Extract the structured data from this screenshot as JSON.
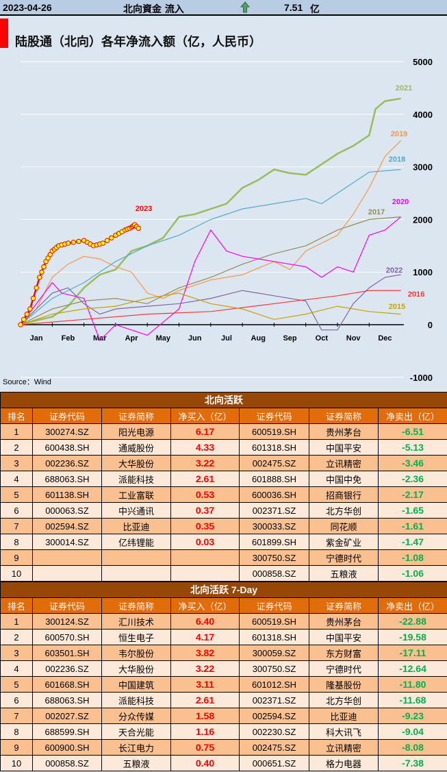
{
  "header": {
    "date": "2023-04-26",
    "label": "北向資金 流入",
    "direction_icon": "up-arrow-icon",
    "value": "7.51",
    "unit": "亿"
  },
  "chart_title": "陆股通（北向）各年净流入额（亿，人民币）",
  "source": "Source：Wind",
  "chart_data": {
    "type": "line",
    "title": "陆股通（北向）各年净流入额（亿，人民币）",
    "xlabel": "",
    "ylabel": "",
    "x_ticks": [
      "Jan",
      "Feb",
      "Mar",
      "Apr",
      "May",
      "Jun",
      "Jul",
      "Aug",
      "Sep",
      "Oct",
      "Nov",
      "Dec"
    ],
    "y_ticks": [
      5000,
      4000,
      3000,
      2000,
      1000,
      0,
      -1000
    ],
    "ylim": [
      -1000,
      5000
    ],
    "xlim_months": [
      0,
      12
    ],
    "grid": "horizontal",
    "series": [
      {
        "name": "2021",
        "color": "#9bbb59",
        "points": [
          [
            0,
            0
          ],
          [
            0.5,
            80
          ],
          [
            1,
            150
          ],
          [
            1.5,
            350
          ],
          [
            2,
            700
          ],
          [
            2.5,
            950
          ],
          [
            3,
            1050
          ],
          [
            3.5,
            1400
          ],
          [
            4,
            1500
          ],
          [
            4.5,
            1650
          ],
          [
            5,
            2050
          ],
          [
            5.5,
            2100
          ],
          [
            6,
            2200
          ],
          [
            6.5,
            2300
          ],
          [
            7,
            2600
          ],
          [
            7.5,
            2750
          ],
          [
            8,
            2950
          ],
          [
            8.5,
            2880
          ],
          [
            9,
            2850
          ],
          [
            9.5,
            3050
          ],
          [
            10,
            3250
          ],
          [
            10.5,
            3400
          ],
          [
            11,
            3600
          ],
          [
            11.2,
            4100
          ],
          [
            11.5,
            4250
          ],
          [
            12,
            4300
          ]
        ]
      },
      {
        "name": "2019",
        "color": "#f79646",
        "points": [
          [
            0,
            0
          ],
          [
            0.5,
            300
          ],
          [
            1,
            900
          ],
          [
            1.5,
            1150
          ],
          [
            2,
            1300
          ],
          [
            2.5,
            1250
          ],
          [
            3,
            1100
          ],
          [
            3.5,
            1000
          ],
          [
            4,
            600
          ],
          [
            4.5,
            500
          ],
          [
            5,
            650
          ],
          [
            6,
            850
          ],
          [
            7,
            950
          ],
          [
            8,
            1200
          ],
          [
            8.5,
            1050
          ],
          [
            9,
            1400
          ],
          [
            10,
            1700
          ],
          [
            10.5,
            2100
          ],
          [
            11,
            2600
          ],
          [
            11.5,
            3200
          ],
          [
            12,
            3500
          ]
        ]
      },
      {
        "name": "2018",
        "color": "#4bacc6",
        "points": [
          [
            0,
            0
          ],
          [
            1,
            500
          ],
          [
            2,
            800
          ],
          [
            3,
            1200
          ],
          [
            4,
            1500
          ],
          [
            5,
            1700
          ],
          [
            6,
            2000
          ],
          [
            7,
            2200
          ],
          [
            8,
            2300
          ],
          [
            9,
            2400
          ],
          [
            9.5,
            2300
          ],
          [
            10,
            2500
          ],
          [
            11,
            2900
          ],
          [
            12,
            2950
          ]
        ]
      },
      {
        "name": "2017",
        "color": "#948a54",
        "points": [
          [
            0,
            0
          ],
          [
            1,
            300
          ],
          [
            2,
            450
          ],
          [
            3,
            500
          ],
          [
            4,
            400
          ],
          [
            5,
            700
          ],
          [
            6,
            900
          ],
          [
            7,
            1150
          ],
          [
            8,
            1350
          ],
          [
            9,
            1500
          ],
          [
            10,
            1800
          ],
          [
            11,
            2000
          ],
          [
            12,
            2050
          ]
        ]
      },
      {
        "name": "2020",
        "color": "#ff00ff",
        "points": [
          [
            0,
            0
          ],
          [
            1,
            800
          ],
          [
            1.3,
            600
          ],
          [
            2,
            500
          ],
          [
            2.5,
            -300
          ],
          [
            3,
            0
          ],
          [
            4,
            -200
          ],
          [
            5,
            300
          ],
          [
            5.5,
            1200
          ],
          [
            6,
            1800
          ],
          [
            6.5,
            1400
          ],
          [
            7,
            1300
          ],
          [
            8,
            1200
          ],
          [
            9,
            1100
          ],
          [
            9.5,
            900
          ],
          [
            10,
            1100
          ],
          [
            10.5,
            1000
          ],
          [
            11,
            1700
          ],
          [
            11.5,
            1800
          ],
          [
            12,
            2050
          ]
        ]
      },
      {
        "name": "2022",
        "color": "#8064a2",
        "points": [
          [
            0,
            0
          ],
          [
            0.5,
            300
          ],
          [
            1,
            600
          ],
          [
            1.5,
            700
          ],
          [
            2,
            400
          ],
          [
            2.5,
            200
          ],
          [
            3,
            300
          ],
          [
            4,
            350
          ],
          [
            5,
            400
          ],
          [
            6,
            500
          ],
          [
            7,
            650
          ],
          [
            8,
            550
          ],
          [
            9,
            450
          ],
          [
            9.5,
            -100
          ],
          [
            10,
            -100
          ],
          [
            10.5,
            400
          ],
          [
            11,
            700
          ],
          [
            11.5,
            900
          ],
          [
            12,
            950
          ]
        ]
      },
      {
        "name": "2016",
        "color": "#ff3333",
        "points": [
          [
            0,
            0
          ],
          [
            2,
            100
          ],
          [
            4,
            200
          ],
          [
            6,
            250
          ],
          [
            8,
            400
          ],
          [
            10,
            550
          ],
          [
            11,
            650
          ],
          [
            12,
            650
          ]
        ]
      },
      {
        "name": "2015",
        "color": "#c9a000",
        "points": [
          [
            0,
            0
          ],
          [
            1,
            200
          ],
          [
            2,
            300
          ],
          [
            3,
            350
          ],
          [
            4,
            500
          ],
          [
            5,
            600
          ],
          [
            6,
            400
          ],
          [
            7,
            300
          ],
          [
            8,
            100
          ],
          [
            9,
            200
          ],
          [
            10,
            350
          ],
          [
            11,
            250
          ],
          [
            12,
            200
          ]
        ]
      },
      {
        "name": "2023",
        "color": "#ff0000",
        "marker": "#ffff00",
        "points": [
          [
            0,
            0
          ],
          [
            0.3,
            300
          ],
          [
            0.6,
            900
          ],
          [
            0.8,
            1200
          ],
          [
            1,
            1400
          ],
          [
            1.2,
            1500
          ],
          [
            1.5,
            1550
          ],
          [
            2,
            1600
          ],
          [
            2.3,
            1500
          ],
          [
            2.6,
            1550
          ],
          [
            3,
            1700
          ],
          [
            3.3,
            1800
          ],
          [
            3.5,
            1850
          ],
          [
            3.6,
            1900
          ],
          [
            3.78,
            1800
          ]
        ]
      }
    ]
  },
  "tables": [
    {
      "title": "北向活跃",
      "headers": [
        "排名",
        "证券代码",
        "证券简称",
        "净买入（亿）",
        "证券代码",
        "证券简称",
        "净卖出（亿）"
      ],
      "rows": [
        [
          "1",
          "300274.SZ",
          "阳光电源",
          "6.17",
          "600519.SH",
          "贵州茅台",
          "-6.51"
        ],
        [
          "2",
          "600438.SH",
          "通威股份",
          "4.33",
          "601318.SH",
          "中国平安",
          "-5.13"
        ],
        [
          "3",
          "002236.SZ",
          "大华股份",
          "3.22",
          "002475.SZ",
          "立讯精密",
          "-3.46"
        ],
        [
          "4",
          "688063.SH",
          "派能科技",
          "2.61",
          "601888.SH",
          "中国中免",
          "-2.36"
        ],
        [
          "5",
          "601138.SH",
          "工业富联",
          "0.53",
          "600036.SH",
          "招商银行",
          "-2.17"
        ],
        [
          "6",
          "000063.SZ",
          "中兴通讯",
          "0.37",
          "002371.SZ",
          "北方华创",
          "-1.65"
        ],
        [
          "7",
          "002594.SZ",
          "比亚迪",
          "0.35",
          "300033.SZ",
          "同花顺",
          "-1.61"
        ],
        [
          "8",
          "300014.SZ",
          "亿纬锂能",
          "0.03",
          "601899.SH",
          "紫金矿业",
          "-1.47"
        ],
        [
          "9",
          "",
          "",
          "",
          "300750.SZ",
          "宁德时代",
          "-1.08"
        ],
        [
          "10",
          "",
          "",
          "",
          "000858.SZ",
          "五粮液",
          "-1.06"
        ]
      ]
    },
    {
      "title": "北向活跃 7-Day",
      "headers": [
        "排名",
        "证券代码",
        "证券简称",
        "净买入（亿）",
        "证券代码",
        "证券简称",
        "净卖出（亿）"
      ],
      "rows": [
        [
          "1",
          "300124.SZ",
          "汇川技术",
          "6.40",
          "600519.SH",
          "贵州茅台",
          "-22.88"
        ],
        [
          "2",
          "600570.SH",
          "恒生电子",
          "4.17",
          "601318.SH",
          "中国平安",
          "-19.58"
        ],
        [
          "3",
          "603501.SH",
          "韦尔股份",
          "3.82",
          "300059.SZ",
          "东方财富",
          "-17.11"
        ],
        [
          "4",
          "002236.SZ",
          "大华股份",
          "3.22",
          "300750.SZ",
          "宁德时代",
          "-12.64"
        ],
        [
          "5",
          "601668.SH",
          "中国建筑",
          "3.11",
          "601012.SH",
          "隆基股份",
          "-11.80"
        ],
        [
          "6",
          "688063.SH",
          "派能科技",
          "2.61",
          "002371.SZ",
          "北方华创",
          "-11.68"
        ],
        [
          "7",
          "002027.SZ",
          "分众传媒",
          "1.58",
          "002594.SZ",
          "比亚迪",
          "-9.23"
        ],
        [
          "8",
          "688599.SH",
          "天合光能",
          "1.16",
          "002230.SZ",
          "科大讯飞",
          "-9.04"
        ],
        [
          "9",
          "600900.SH",
          "长江电力",
          "0.75",
          "002475.SZ",
          "立讯精密",
          "-8.08"
        ],
        [
          "10",
          "000858.SZ",
          "五粮液",
          "0.40",
          "000651.SZ",
          "格力电器",
          "-7.38"
        ]
      ]
    }
  ]
}
